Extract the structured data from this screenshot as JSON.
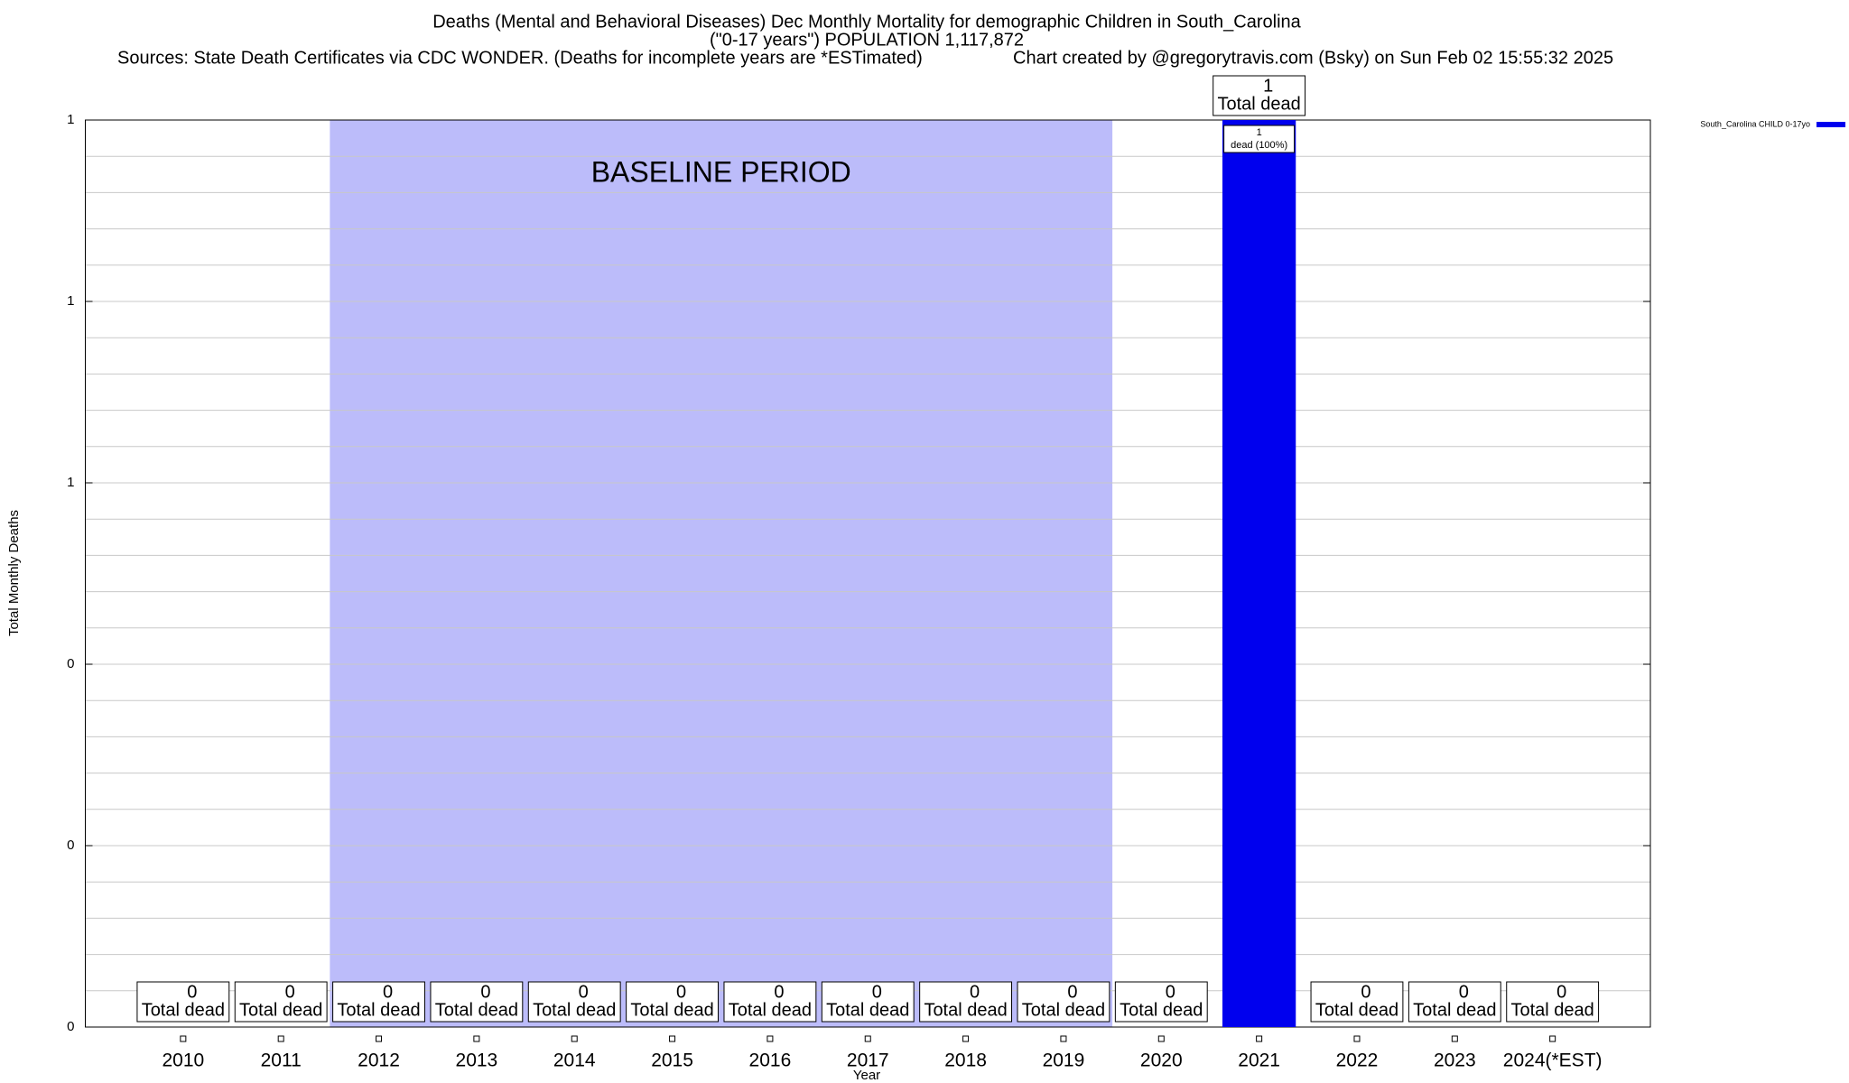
{
  "chart_data": {
    "type": "bar",
    "title": "Deaths (Mental and Behavioral Diseases) Dec Monthly Mortality for demographic Children in South_Carolina",
    "subtitle": "(\"0-17 years\") POPULATION 1,117,872",
    "sources": "Sources: State Death Certificates via CDC WONDER. (Deaths for incomplete years are *ESTimated)",
    "credit": "Chart created by @gregorytravis.com (Bsky) on Sun Feb 02 15:55:32 2025",
    "x_label": "Year",
    "y_label": "Total Monthly Deaths",
    "categories": [
      "2010",
      "2011",
      "2012",
      "2013",
      "2014",
      "2015",
      "2016",
      "2017",
      "2018",
      "2019",
      "2020",
      "2021",
      "2022",
      "2023",
      "2024(*EST)"
    ],
    "series": [
      {
        "name": "South_Carolina CHILD 0-17yo",
        "color": "#0000ee",
        "values": [
          0,
          0,
          0,
          0,
          0,
          0,
          0,
          0,
          0,
          0,
          0,
          1,
          0,
          0,
          0
        ]
      }
    ],
    "value_label_caption": "Total dead",
    "segment_caption": "dead (100%)",
    "baseline": {
      "label": "BASELINE PERIOD",
      "start": "2012",
      "end": "2019",
      "color": "#bcbcfa"
    },
    "ylim": [
      0,
      1
    ],
    "yticks": [
      0,
      {
        "value": 0.2,
        "label": "0"
      },
      {
        "value": 0.4,
        "label": "0"
      },
      {
        "value": 0.6,
        "label": "1"
      },
      {
        "value": 0.8,
        "label": "1"
      },
      1
    ],
    "minor_yticks": [
      0.04,
      0.08,
      0.12,
      0.16,
      0.24,
      0.28,
      0.32,
      0.36,
      0.44,
      0.48,
      0.52,
      0.56,
      0.64,
      0.68,
      0.72,
      0.76,
      0.84,
      0.88,
      0.92,
      0.96
    ],
    "grid": true,
    "legend": "top-right"
  }
}
